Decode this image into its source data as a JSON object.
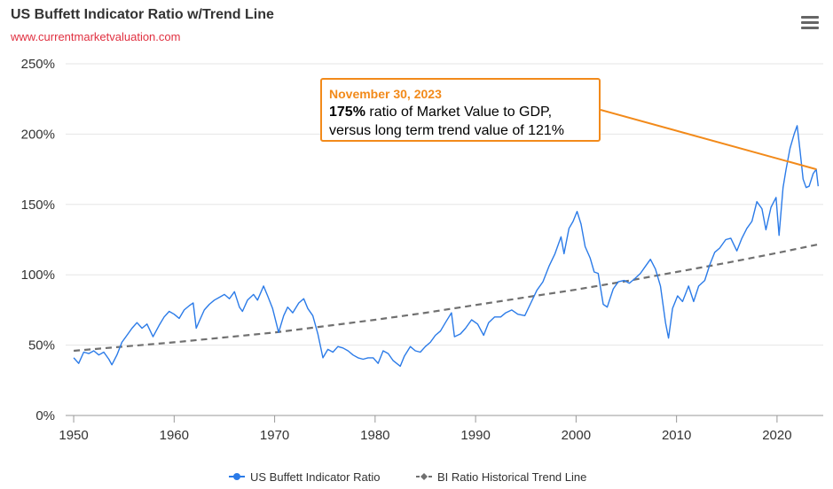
{
  "header": {
    "title": "US Buffett Indicator Ratio w/Trend Line",
    "subtitle": "www.currentmarketvaluation.com"
  },
  "menu": {
    "icon": "hamburger-menu-icon"
  },
  "annotation": {
    "date": "November 30, 2023",
    "value_bold": "175%",
    "line1_rest": " ratio of Market Value to GDP,",
    "line2": "versus long term trend value of 121%",
    "color": "#f28a1a",
    "point": {
      "x": 2023.92,
      "y": 175
    }
  },
  "chart_data": {
    "type": "line",
    "title": "US Buffett Indicator Ratio w/Trend Line",
    "xlim": [
      1949.2,
      2024.6
    ],
    "ylim": [
      0,
      250
    ],
    "x_ticks": [
      1950,
      1960,
      1970,
      1980,
      1990,
      2000,
      2010,
      2020
    ],
    "x_tick_labels": [
      "1950",
      "1960",
      "1970",
      "1980",
      "1990",
      "2000",
      "2010",
      "2020"
    ],
    "y_ticks": [
      0,
      50,
      100,
      150,
      200,
      250
    ],
    "y_tick_labels": [
      "0%",
      "50%",
      "100%",
      "150%",
      "200%",
      "250%"
    ],
    "grid": "horizontal",
    "legend_position": "bottom-center",
    "series": [
      {
        "name": "US Buffett Indicator Ratio",
        "color": "#2b7be8",
        "style": "solid",
        "points": [
          [
            1950.0,
            41
          ],
          [
            1950.5,
            37
          ],
          [
            1951.0,
            45
          ],
          [
            1951.5,
            44
          ],
          [
            1952.0,
            46
          ],
          [
            1952.5,
            43
          ],
          [
            1953.0,
            45
          ],
          [
            1953.5,
            40
          ],
          [
            1953.8,
            36
          ],
          [
            1954.3,
            43
          ],
          [
            1954.8,
            52
          ],
          [
            1955.3,
            57
          ],
          [
            1955.8,
            62
          ],
          [
            1956.3,
            66
          ],
          [
            1956.8,
            62
          ],
          [
            1957.3,
            65
          ],
          [
            1957.9,
            56
          ],
          [
            1958.5,
            64
          ],
          [
            1959.0,
            70
          ],
          [
            1959.5,
            74
          ],
          [
            1960.0,
            72
          ],
          [
            1960.5,
            69
          ],
          [
            1961.0,
            75
          ],
          [
            1961.5,
            78
          ],
          [
            1961.9,
            80
          ],
          [
            1962.2,
            62
          ],
          [
            1962.5,
            67
          ],
          [
            1963.0,
            75
          ],
          [
            1963.5,
            79
          ],
          [
            1964.0,
            82
          ],
          [
            1964.5,
            84
          ],
          [
            1965.0,
            86
          ],
          [
            1965.5,
            83
          ],
          [
            1966.0,
            88
          ],
          [
            1966.5,
            77
          ],
          [
            1966.8,
            74
          ],
          [
            1967.3,
            82
          ],
          [
            1967.9,
            86
          ],
          [
            1968.3,
            82
          ],
          [
            1968.9,
            92
          ],
          [
            1969.3,
            85
          ],
          [
            1969.8,
            76
          ],
          [
            1970.4,
            59
          ],
          [
            1970.9,
            71
          ],
          [
            1971.3,
            77
          ],
          [
            1971.8,
            73
          ],
          [
            1972.4,
            80
          ],
          [
            1972.9,
            83
          ],
          [
            1973.3,
            76
          ],
          [
            1973.8,
            71
          ],
          [
            1974.3,
            58
          ],
          [
            1974.8,
            41
          ],
          [
            1975.3,
            47
          ],
          [
            1975.8,
            45
          ],
          [
            1976.3,
            49
          ],
          [
            1976.8,
            48
          ],
          [
            1977.3,
            46
          ],
          [
            1977.8,
            43
          ],
          [
            1978.3,
            41
          ],
          [
            1978.8,
            40
          ],
          [
            1979.3,
            41
          ],
          [
            1979.8,
            41
          ],
          [
            1980.3,
            37
          ],
          [
            1980.8,
            46
          ],
          [
            1981.3,
            44
          ],
          [
            1981.8,
            39
          ],
          [
            1982.5,
            35
          ],
          [
            1982.9,
            42
          ],
          [
            1983.5,
            49
          ],
          [
            1984.0,
            46
          ],
          [
            1984.5,
            45
          ],
          [
            1985.0,
            49
          ],
          [
            1985.5,
            52
          ],
          [
            1986.0,
            57
          ],
          [
            1986.5,
            60
          ],
          [
            1987.0,
            66
          ],
          [
            1987.6,
            73
          ],
          [
            1987.9,
            56
          ],
          [
            1988.5,
            58
          ],
          [
            1989.0,
            62
          ],
          [
            1989.6,
            68
          ],
          [
            1990.2,
            65
          ],
          [
            1990.8,
            57
          ],
          [
            1991.3,
            66
          ],
          [
            1991.9,
            70
          ],
          [
            1992.5,
            70
          ],
          [
            1993.0,
            73
          ],
          [
            1993.6,
            75
          ],
          [
            1994.2,
            72
          ],
          [
            1994.9,
            71
          ],
          [
            1995.5,
            80
          ],
          [
            1996.1,
            89
          ],
          [
            1996.7,
            95
          ],
          [
            1997.3,
            106
          ],
          [
            1997.9,
            115
          ],
          [
            1998.5,
            127
          ],
          [
            1998.8,
            115
          ],
          [
            1999.3,
            133
          ],
          [
            1999.7,
            138
          ],
          [
            2000.1,
            145
          ],
          [
            2000.5,
            136
          ],
          [
            2000.9,
            120
          ],
          [
            2001.4,
            112
          ],
          [
            2001.8,
            102
          ],
          [
            2002.2,
            101
          ],
          [
            2002.7,
            79
          ],
          [
            2003.1,
            77
          ],
          [
            2003.7,
            90
          ],
          [
            2004.2,
            95
          ],
          [
            2004.8,
            96
          ],
          [
            2005.3,
            94
          ],
          [
            2005.8,
            97
          ],
          [
            2006.4,
            101
          ],
          [
            2006.9,
            106
          ],
          [
            2007.4,
            111
          ],
          [
            2007.9,
            104
          ],
          [
            2008.4,
            92
          ],
          [
            2008.9,
            66
          ],
          [
            2009.2,
            55
          ],
          [
            2009.6,
            76
          ],
          [
            2010.1,
            85
          ],
          [
            2010.6,
            81
          ],
          [
            2011.2,
            92
          ],
          [
            2011.7,
            81
          ],
          [
            2012.2,
            92
          ],
          [
            2012.8,
            96
          ],
          [
            2013.3,
            107
          ],
          [
            2013.8,
            116
          ],
          [
            2014.3,
            119
          ],
          [
            2014.9,
            125
          ],
          [
            2015.4,
            126
          ],
          [
            2016.0,
            117
          ],
          [
            2016.5,
            126
          ],
          [
            2017.0,
            133
          ],
          [
            2017.5,
            138
          ],
          [
            2018.0,
            152
          ],
          [
            2018.5,
            147
          ],
          [
            2018.9,
            132
          ],
          [
            2019.4,
            148
          ],
          [
            2019.9,
            155
          ],
          [
            2020.2,
            128
          ],
          [
            2020.6,
            162
          ],
          [
            2020.9,
            175
          ],
          [
            2021.3,
            190
          ],
          [
            2021.7,
            200
          ],
          [
            2022.0,
            206
          ],
          [
            2022.3,
            188
          ],
          [
            2022.6,
            168
          ],
          [
            2022.9,
            162
          ],
          [
            2023.2,
            163
          ],
          [
            2023.6,
            172
          ],
          [
            2023.9,
            175
          ],
          [
            2024.1,
            163
          ]
        ]
      },
      {
        "name": "BI Ratio Historical Trend Line",
        "color": "#707070",
        "style": "dashed",
        "points": [
          [
            1950,
            46
          ],
          [
            1955,
            49
          ],
          [
            1960,
            52
          ],
          [
            1965,
            55.5
          ],
          [
            1970,
            59
          ],
          [
            1975,
            63.5
          ],
          [
            1980,
            68
          ],
          [
            1985,
            73
          ],
          [
            1990,
            78.5
          ],
          [
            1995,
            84
          ],
          [
            2000,
            89.5
          ],
          [
            2005,
            95.5
          ],
          [
            2010,
            102
          ],
          [
            2015,
            108.5
          ],
          [
            2020,
            115.5
          ],
          [
            2024,
            121.5
          ]
        ]
      }
    ]
  }
}
